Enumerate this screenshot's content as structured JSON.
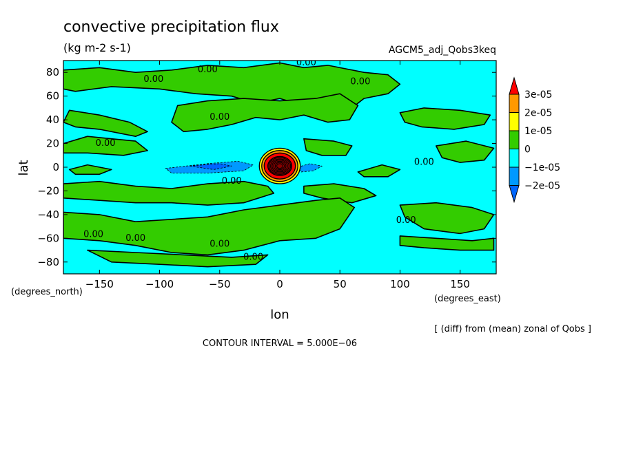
{
  "chart_data": {
    "type": "heatmap",
    "title": "convective precipitation flux",
    "units": "(kg m-2 s-1)",
    "dataset": "AGCM5_adj_Qobs3keq",
    "xlabel": "lon",
    "ylabel": "lat",
    "x_unit_label": "(degrees_east)",
    "y_unit_label": "(degrees_north)",
    "xlim": [
      -180,
      180
    ],
    "ylim": [
      -90,
      90
    ],
    "x_ticks": [
      -150,
      -100,
      -50,
      0,
      50,
      100,
      150
    ],
    "x_tick_labels": [
      "−150",
      "−100",
      "−50",
      "0",
      "50",
      "100",
      "150"
    ],
    "y_ticks": [
      80,
      60,
      40,
      20,
      0,
      -20,
      -40,
      -60,
      -80
    ],
    "y_tick_labels": [
      "80",
      "60",
      "40",
      "20",
      "0",
      "−20",
      "−40",
      "−60",
      "−80"
    ],
    "colorbar": {
      "levels": [
        {
          "label": "3e-05",
          "value": 3e-05
        },
        {
          "label": "2e-05",
          "value": 2e-05
        },
        {
          "label": "1e-05",
          "value": 1e-05
        },
        {
          "label": "0",
          "value": 0
        },
        {
          "label": "−1e-05",
          "value": -1e-05
        },
        {
          "label": "−2e-05",
          "value": -2e-05
        }
      ],
      "colors": [
        "#ff0000",
        "#ff9900",
        "#ffff00",
        "#33cc00",
        "#00ffff",
        "#0099ff",
        "#0066ff"
      ]
    },
    "contour_label": "0.00",
    "contour_interval_text": "CONTOUR INTERVAL = 5.000E−06",
    "note": "[ (diff) from (mean) zonal of Qobs ]",
    "background_color": "#00ffff",
    "positive_color": "#33cc00"
  }
}
